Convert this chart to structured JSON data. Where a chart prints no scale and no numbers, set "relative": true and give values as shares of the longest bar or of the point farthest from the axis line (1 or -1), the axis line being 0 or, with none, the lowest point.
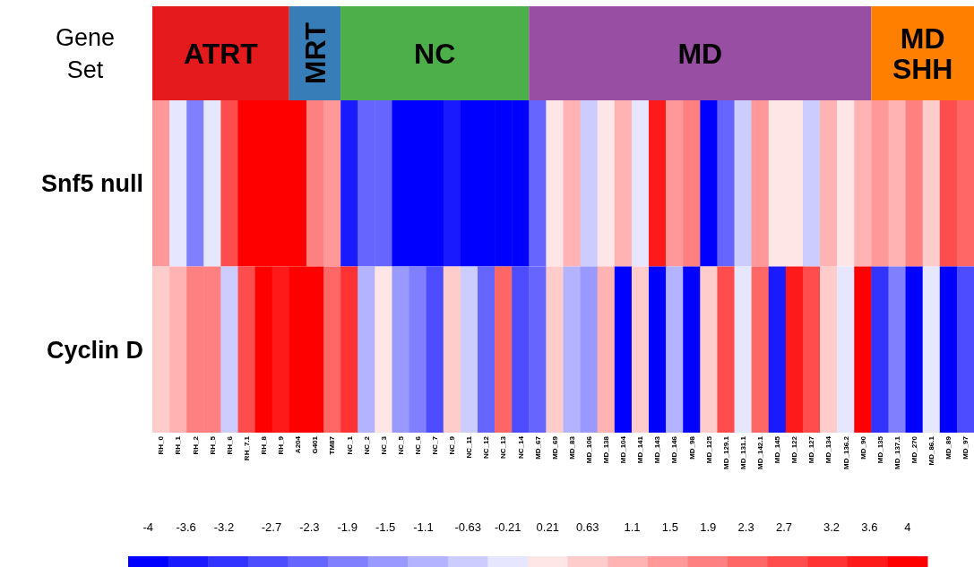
{
  "chart_data": [
    {
      "type": "bar",
      "orientation": "horizontal",
      "stacked": true,
      "relative": true,
      "categories": [
        "Gene Set"
      ],
      "series": [
        {
          "name": "ATRT",
          "color": "#e41a1c",
          "values": [
            0.1666
          ]
        },
        {
          "name": "MRT",
          "color": "#377eb8",
          "values": [
            0.0625
          ]
        },
        {
          "name": "NC",
          "color": "#4daf4a",
          "values": [
            0.2292
          ]
        },
        {
          "name": "MD",
          "color": "#984ea3",
          "values": [
            0.4167
          ]
        },
        {
          "name": "MD SHH",
          "color": "#ff7f00",
          "values": [
            0.125
          ]
        }
      ]
    },
    {
      "type": "heatmap",
      "categories": [
        "RH_0",
        "RH_1",
        "RH_2",
        "RH_5",
        "RH_6",
        "RH_7.1",
        "RH_8",
        "RH_9",
        "A204",
        "G401",
        "TM87",
        "NC_1",
        "NC_2",
        "NC_3",
        "NC_5",
        "NC_6",
        "NC_7",
        "NC_9",
        "NC_11",
        "NC_12",
        "NC_13",
        "NC_14",
        "MD_67",
        "MD_69",
        "MD_83",
        "MD_106",
        "MD_138",
        "MD_104",
        "MD_141",
        "MD_143",
        "MD_146",
        "MD_98",
        "MD_125",
        "MD_129.1",
        "MD_131.1",
        "MD_142.1",
        "MD_145",
        "MD_122",
        "MD_127",
        "MD_134",
        "MD_136.2",
        "MD_90",
        "MD_135",
        "MD_137.1",
        "MD_270",
        "MD_86.1",
        "MD_89",
        "MD_97"
      ],
      "y_categories": [
        "Snf5 null",
        "Cyclin D"
      ],
      "cells": [
        [
          1.5,
          -0.21,
          -1.9,
          -0.21,
          2.7,
          4,
          4,
          4,
          4,
          1.9,
          1.5,
          -3.6,
          -2.3,
          -2.3,
          -4,
          -4,
          -4,
          -3.6,
          -4,
          -4,
          -4,
          -4,
          -2.3,
          0.21,
          1.1,
          -0.63,
          0.21,
          1.1,
          -0.21,
          3.6,
          1.5,
          1.9,
          -4,
          -2.3,
          -0.63,
          1.5,
          0.21,
          0.21,
          -0.63,
          1.1,
          0.21,
          1.1,
          1.5,
          1.1,
          1.9,
          0.63,
          2.7,
          2.3
        ],
        [
          0.63,
          1.1,
          1.9,
          1.9,
          -0.63,
          2.7,
          4,
          3.6,
          4,
          4,
          2.3,
          3.2,
          -1.1,
          0.21,
          -1.5,
          -1.9,
          -2.7,
          0.63,
          -0.63,
          -2.3,
          2.3,
          -2.7,
          -2.3,
          0.63,
          -1.1,
          -1.5,
          1.1,
          -4,
          0.63,
          -4,
          -1.1,
          -4,
          0.63,
          2.7,
          -0.21,
          2.3,
          -3.6,
          3.6,
          2.7,
          0.63,
          -0.21,
          4,
          -3.2,
          -1.9,
          -4,
          -0.21,
          -4,
          -2.7
        ]
      ],
      "clim": [
        -4.21,
        4.21
      ],
      "cticks": [
        -4,
        -3.6,
        -3.2,
        -2.7,
        -2.3,
        -1.9,
        -1.5,
        -1.1,
        -0.63,
        -0.21,
        0.21,
        0.63,
        1.1,
        1.5,
        1.9,
        2.3,
        2.7,
        3.2,
        3.6,
        4
      ]
    }
  ]
}
